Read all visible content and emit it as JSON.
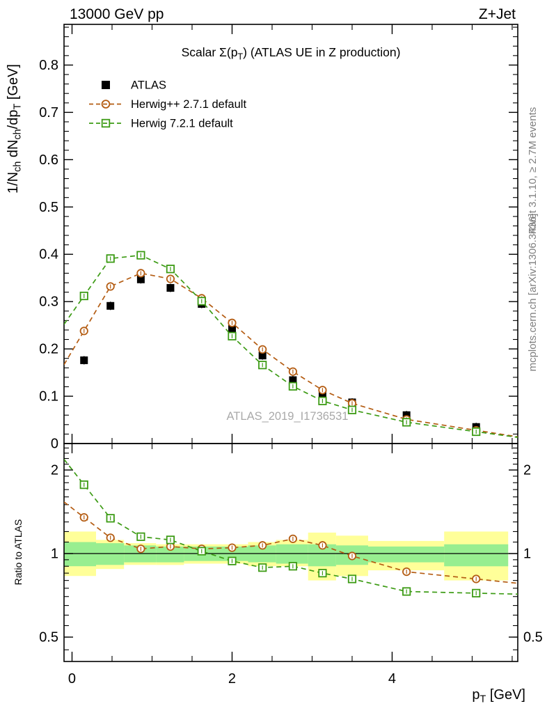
{
  "header": {
    "left": "13000 GeV pp",
    "right": "Z+Jet"
  },
  "watermark": "ATLAS_2019_I1736531",
  "side_notes": {
    "rivet": "Rivet 3.1.10, ≥ 2.7M events",
    "mcplots": "mcplots.cern.ch [arXiv:1306.3436]"
  },
  "labels": {
    "title_segments": [
      {
        "t": "Scalar Σ(p"
      },
      {
        "t": "T",
        "sub": true
      },
      {
        "t": ") (ATLAS UE in Z production)"
      }
    ],
    "y_axis_segments": [
      {
        "t": "1/N"
      },
      {
        "t": "ch",
        "sub": true
      },
      {
        "t": " dN"
      },
      {
        "t": "ch",
        "sub": true
      },
      {
        "t": "/dp"
      },
      {
        "t": "T",
        "sub": true
      },
      {
        "t": " [GeV]"
      }
    ],
    "x_axis_segments": [
      {
        "t": "p"
      },
      {
        "t": "T",
        "sub": true
      },
      {
        "t": " [GeV]"
      }
    ],
    "ratio_y_label": "Ratio to ATLAS"
  },
  "legend": {
    "entries": [
      {
        "label": "ATLAS",
        "marker": "filled-square",
        "color": "#000000",
        "line": false
      },
      {
        "label": "Herwig++ 2.7.1 default",
        "marker": "open-circle",
        "color": "#b45c12",
        "line": true
      },
      {
        "label": "Herwig 7.2.1 default",
        "marker": "open-square",
        "color": "#3c9b14",
        "line": true
      }
    ]
  },
  "chart_data": {
    "type": "line",
    "title": "Scalar Σ(pT) (ATLAS UE in Z production)",
    "xlabel": "pT [GeV]",
    "ylabel": "1/Nch dNch/dpT [GeV]",
    "ratio_ylabel": "Ratio to ATLAS",
    "x": [
      0.15,
      0.48,
      0.86,
      1.23,
      1.62,
      2.0,
      2.38,
      2.76,
      3.13,
      3.5,
      4.18,
      5.05
    ],
    "series": [
      {
        "name": "ATLAS",
        "marker": "filled-square",
        "color": "#000000",
        "linestyle": "none",
        "values": [
          0.176,
          0.291,
          0.347,
          0.329,
          0.295,
          0.242,
          0.186,
          0.134,
          0.106,
          0.087,
          0.06,
          0.035
        ]
      },
      {
        "name": "Herwig++ 2.7.1 default",
        "marker": "open-circle",
        "color": "#b45c12",
        "linestyle": "dashed",
        "values": [
          0.238,
          0.332,
          0.36,
          0.348,
          0.307,
          0.255,
          0.199,
          0.152,
          0.113,
          0.085,
          0.051,
          0.028
        ]
      },
      {
        "name": "Herwig 7.2.1 default",
        "marker": "open-square",
        "color": "#3c9b14",
        "linestyle": "dashed",
        "values": [
          0.312,
          0.391,
          0.398,
          0.369,
          0.301,
          0.227,
          0.166,
          0.121,
          0.09,
          0.071,
          0.045,
          0.025
        ]
      }
    ],
    "ratio_series": [
      {
        "name": "Herwig++ 2.7.1 default",
        "marker": "open-circle",
        "color": "#b45c12",
        "linestyle": "dashed",
        "values": [
          1.35,
          1.14,
          1.04,
          1.06,
          1.04,
          1.05,
          1.07,
          1.13,
          1.07,
          0.98,
          0.86,
          0.81
        ]
      },
      {
        "name": "Herwig 7.2.1 default",
        "marker": "open-square",
        "color": "#3c9b14",
        "linestyle": "dashed",
        "values": [
          1.77,
          1.34,
          1.15,
          1.12,
          1.02,
          0.94,
          0.89,
          0.9,
          0.85,
          0.81,
          0.73,
          0.72
        ]
      }
    ],
    "ratio_bands": {
      "outer_color": "#ffff99",
      "inner_color": "#98ee90",
      "bins": [
        {
          "x0": -0.1,
          "x1": 0.3,
          "outer": [
            0.83,
            1.2
          ],
          "inner": [
            0.9,
            1.1
          ]
        },
        {
          "x0": 0.3,
          "x1": 0.65,
          "outer": [
            0.88,
            1.12
          ],
          "inner": [
            0.91,
            1.09
          ]
        },
        {
          "x0": 0.65,
          "x1": 1.05,
          "outer": [
            0.91,
            1.09
          ],
          "inner": [
            0.93,
            1.07
          ]
        },
        {
          "x0": 1.05,
          "x1": 1.4,
          "outer": [
            0.91,
            1.08
          ],
          "inner": [
            0.93,
            1.06
          ]
        },
        {
          "x0": 1.4,
          "x1": 1.8,
          "outer": [
            0.92,
            1.08
          ],
          "inner": [
            0.94,
            1.06
          ]
        },
        {
          "x0": 1.8,
          "x1": 2.2,
          "outer": [
            0.92,
            1.08
          ],
          "inner": [
            0.94,
            1.06
          ]
        },
        {
          "x0": 2.2,
          "x1": 2.55,
          "outer": [
            0.9,
            1.1
          ],
          "inner": [
            0.93,
            1.07
          ]
        },
        {
          "x0": 2.55,
          "x1": 2.95,
          "outer": [
            0.9,
            1.12
          ],
          "inner": [
            0.92,
            1.08
          ]
        },
        {
          "x0": 2.95,
          "x1": 3.3,
          "outer": [
            0.8,
            1.19
          ],
          "inner": [
            0.9,
            1.08
          ]
        },
        {
          "x0": 3.3,
          "x1": 3.7,
          "outer": [
            0.83,
            1.16
          ],
          "inner": [
            0.91,
            1.07
          ]
        },
        {
          "x0": 3.7,
          "x1": 4.65,
          "outer": [
            0.87,
            1.11
          ],
          "inner": [
            0.93,
            1.06
          ]
        },
        {
          "x0": 4.65,
          "x1": 5.45,
          "outer": [
            0.8,
            1.2
          ],
          "inner": [
            0.9,
            1.08
          ]
        }
      ]
    },
    "x_axis": {
      "range": [
        -0.1,
        5.57
      ],
      "majors": [
        0,
        2,
        4
      ],
      "tick_labels": [
        "0",
        "2",
        "4"
      ],
      "minor_step": 0.5
    },
    "y_axis": {
      "range": [
        0,
        0.886
      ],
      "majors": [
        0,
        0.1,
        0.2,
        0.3,
        0.4,
        0.5,
        0.6,
        0.7,
        0.8
      ],
      "tick_labels": [
        "0",
        "0.1",
        "0.2",
        "0.3",
        "0.4",
        "0.5",
        "0.6",
        "0.7",
        "0.8"
      ],
      "minor_step": 0.02
    },
    "ratio_axis": {
      "scale": "log",
      "range": [
        0.41,
        2.49
      ],
      "majors": [
        0.5,
        1,
        2
      ],
      "tick_labels": [
        "0.5",
        "1",
        "2"
      ]
    },
    "legend_position": "top-left",
    "grid": false
  }
}
